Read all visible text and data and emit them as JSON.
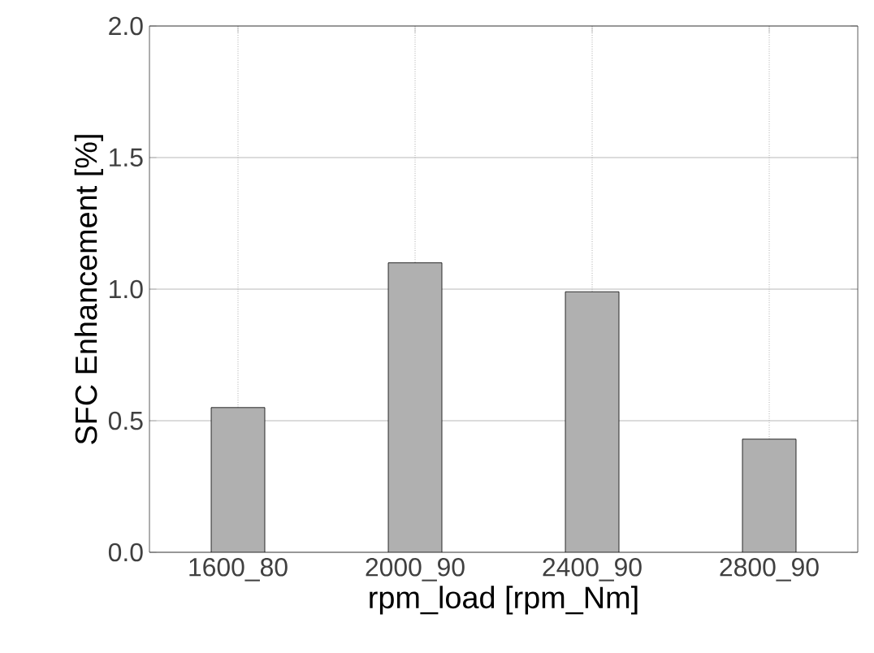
{
  "chart_data": {
    "type": "bar",
    "xlabel": "rpm_load [rpm_Nm]",
    "ylabel": "SFC Enhancement [%]",
    "categories": [
      "1600_80",
      "2000_90",
      "2400_90",
      "2800_90"
    ],
    "values": [
      0.55,
      1.1,
      0.99,
      0.43
    ],
    "color": "#b0b0b0",
    "ylim": [
      0,
      2
    ],
    "yticks": [
      {
        "value": 0,
        "label": "0.0"
      },
      {
        "value": 0.5,
        "label": "0.5"
      },
      {
        "value": 1,
        "label": "1.0"
      },
      {
        "value": 1.5,
        "label": "1.5"
      },
      {
        "value": 2,
        "label": "2.0"
      }
    ],
    "grid": true
  }
}
